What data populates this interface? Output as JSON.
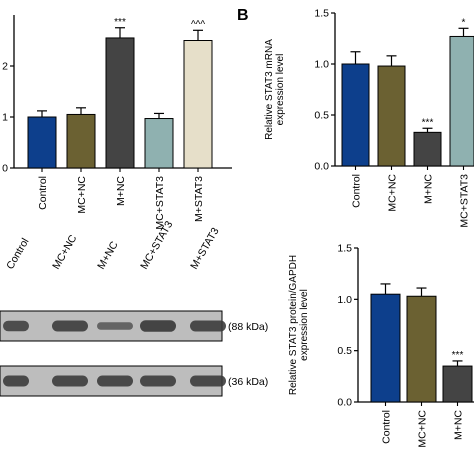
{
  "panel_labels": {
    "b": "B"
  },
  "colors": {
    "control": "#0d3f8c",
    "mc_nc": "#6b6132",
    "m_nc": "#444444",
    "mc_stat3": "#8fb1b0",
    "m_stat3": "#e6dfc9",
    "blot_bg": "#bdbdbd",
    "blot_band": "#3a3a3a"
  },
  "chart_data": [
    {
      "type": "bar",
      "panel": "left",
      "categories": [
        "Control",
        "MC+NC",
        "M+NC",
        "MC+STAT3",
        "M+STAT3"
      ],
      "values": [
        1.0,
        1.05,
        2.55,
        0.97,
        2.5
      ],
      "errors": [
        0.12,
        0.13,
        0.2,
        0.1,
        0.2
      ],
      "significance": [
        "",
        "",
        "***",
        "",
        "^^^"
      ],
      "yticks": [
        "0",
        "1",
        "2"
      ],
      "ylim": [
        0,
        3
      ],
      "ylabel": "",
      "title": ""
    },
    {
      "type": "bar",
      "panel": "B",
      "categories": [
        "Control",
        "MC+NC",
        "M+NC",
        "MC+STAT3"
      ],
      "values": [
        1.0,
        0.98,
        0.33,
        1.27
      ],
      "errors": [
        0.12,
        0.1,
        0.04,
        0.08
      ],
      "significance": [
        "",
        "",
        "***",
        "*"
      ],
      "yticks": [
        "0.0",
        "0.5",
        "1.0",
        "1.5"
      ],
      "ylim": [
        0,
        1.5
      ],
      "ylabel": [
        "Relative STAT3 mRNA",
        "expression level"
      ],
      "title": ""
    },
    {
      "type": "bar",
      "panel": "lower-right",
      "categories": [
        "Control",
        "MC+NC",
        "M+NC"
      ],
      "values": [
        1.05,
        1.03,
        0.35
      ],
      "errors": [
        0.1,
        0.08,
        0.05
      ],
      "significance": [
        "",
        "",
        "***"
      ],
      "yticks": [
        "0.0",
        "0.5",
        "1.0",
        "1.5"
      ],
      "ylim": [
        0,
        1.5
      ],
      "ylabel": [
        "Relative STAT3 protein/GAPDH",
        "expression level"
      ],
      "title": ""
    }
  ],
  "blot": {
    "lanes": [
      "Control",
      "MC+NC",
      "M+NC",
      "MC+STAT3",
      "M+STAT3"
    ],
    "rows": [
      {
        "label": "(88 kDa)",
        "intensities": [
          0.85,
          0.9,
          0.55,
          0.95,
          0.9
        ]
      },
      {
        "label": "(36 kDa)",
        "intensities": [
          0.9,
          0.9,
          0.9,
          0.9,
          0.9
        ]
      }
    ]
  }
}
